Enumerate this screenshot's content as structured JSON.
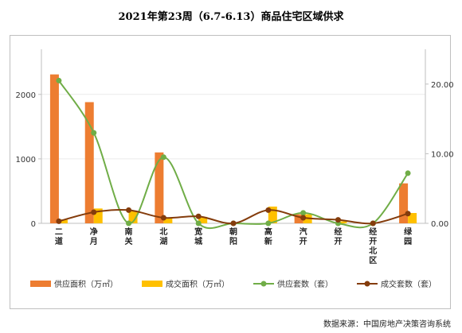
{
  "chart_data": {
    "type": "bar",
    "title": "2021年第23周（6.7-6.13）商品住宅区域供求",
    "categories": [
      "二道",
      "净月",
      "南关",
      "北湖",
      "宽城",
      "朝阳",
      "高新",
      "汽开",
      "经开",
      "经开北区",
      "绿园"
    ],
    "category_display": [
      "二\n道",
      "净\n月",
      "南\n关",
      "北\n湖",
      "宽\n城",
      "朝\n阳",
      "高\n新",
      "汽\n开",
      "经\n开",
      "经\n开\n北\n区",
      "绿\n园"
    ],
    "y_left": {
      "ylim": [
        0,
        2700
      ],
      "ticks": [
        0,
        1000,
        2000
      ],
      "tick_labels": [
        "0",
        "1000",
        "2000"
      ]
    },
    "y_right": {
      "ylim": [
        0,
        25
      ],
      "ticks": [
        0,
        10,
        20
      ],
      "tick_labels": [
        "0.00",
        "10.00",
        "20.00"
      ]
    },
    "series": [
      {
        "name": "供应面积（万㎡）",
        "type": "bar",
        "axis": "left",
        "color": "#ED7D31",
        "values": [
          2310,
          1880,
          0,
          1100,
          0,
          0,
          0,
          140,
          0,
          0,
          620
        ]
      },
      {
        "name": "成交面积（万㎡）",
        "type": "bar",
        "axis": "left",
        "color": "#FFC000",
        "values": [
          60,
          230,
          190,
          80,
          100,
          0,
          260,
          140,
          30,
          0,
          160
        ]
      },
      {
        "name": "供应套数（套）",
        "type": "line",
        "axis": "right",
        "color": "#70AD47",
        "values": [
          20.5,
          13,
          0,
          9.5,
          0,
          0,
          0,
          1.5,
          0,
          0,
          7.2
        ]
      },
      {
        "name": "成交套数（套）",
        "type": "line",
        "axis": "right",
        "color": "#843C0C",
        "values": [
          0.3,
          1.6,
          1.9,
          0.8,
          1.0,
          0,
          1.9,
          0.8,
          0.5,
          0,
          1.4
        ]
      }
    ],
    "legend_position": "bottom",
    "grid": true
  },
  "source": "数据来源：中国房地产决策咨询系统"
}
